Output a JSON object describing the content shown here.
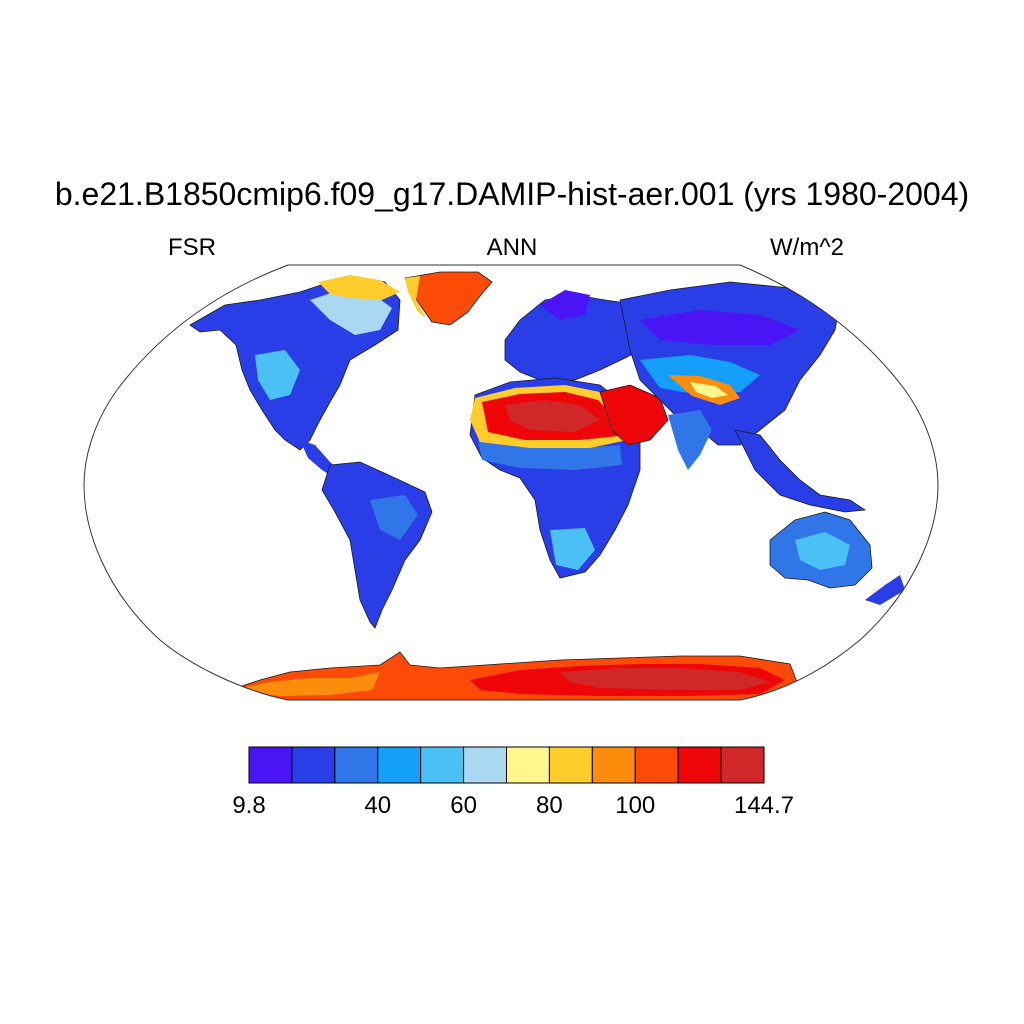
{
  "title": "b.e21.B1850cmip6.f09_g17.DAMIP-hist-aer.001 (yrs 1980-2004)",
  "left_string": "FSR",
  "center_string": "ANN",
  "right_string": "W/m^2",
  "colorbar": {
    "colors": [
      "#4b14f5",
      "#2a3ee8",
      "#3176e8",
      "#14a0fa",
      "#4bc0f5",
      "#aad8f0",
      "#fff68c",
      "#fecc2b",
      "#fb8c0c",
      "#fb4b06",
      "#ee0507",
      "#d02828"
    ],
    "labels": [
      {
        "text": "9.8",
        "index": 0
      },
      {
        "text": "40",
        "index": 3
      },
      {
        "text": "60",
        "index": 5
      },
      {
        "text": "80",
        "index": 7
      },
      {
        "text": "100",
        "index": 9
      },
      {
        "text": "144.7",
        "index": 12
      }
    ]
  }
}
